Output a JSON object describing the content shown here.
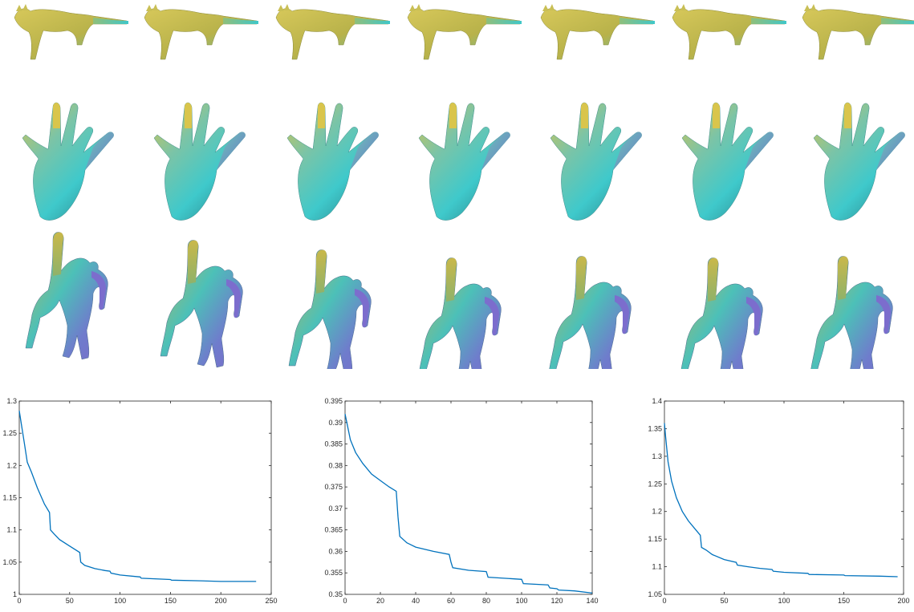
{
  "shapes": {
    "rows": [
      "cat",
      "hand",
      "figure"
    ],
    "columns": 7,
    "colors": {
      "yellow": "#c8b94a",
      "cyan": "#3fc7c9",
      "purple": "#7a6cc9",
      "shade": "#2f7f86"
    }
  },
  "chart_data": [
    {
      "type": "line",
      "xlim": [
        0,
        250
      ],
      "ylim": [
        1,
        1.3
      ],
      "xticks": [
        "0",
        "50",
        "100",
        "150",
        "200",
        "250"
      ],
      "yticks": [
        "1",
        "1.05",
        "1.1",
        "1.15",
        "1.2",
        "1.25",
        "1.3"
      ],
      "color": "#0072bd",
      "grid": false,
      "series": [
        {
          "x": [
            0,
            2,
            5,
            8,
            12,
            18,
            25,
            30,
            31,
            35,
            40,
            50,
            60,
            61,
            65,
            75,
            85,
            90,
            91,
            100,
            120,
            121,
            150,
            151,
            180,
            200,
            220,
            235
          ],
          "y": [
            1.285,
            1.265,
            1.235,
            1.205,
            1.19,
            1.165,
            1.14,
            1.127,
            1.1,
            1.093,
            1.085,
            1.075,
            1.065,
            1.05,
            1.045,
            1.04,
            1.037,
            1.036,
            1.033,
            1.03,
            1.027,
            1.025,
            1.023,
            1.022,
            1.021,
            1.02,
            1.02,
            1.02
          ]
        }
      ]
    },
    {
      "type": "line",
      "xlim": [
        0,
        140
      ],
      "ylim": [
        0.35,
        0.395
      ],
      "xticks": [
        "0",
        "20",
        "40",
        "60",
        "80",
        "100",
        "120",
        "140"
      ],
      "yticks": [
        "0.35",
        "0.355",
        "0.36",
        "0.365",
        "0.37",
        "0.375",
        "0.38",
        "0.385",
        "0.39",
        "0.395"
      ],
      "color": "#0072bd",
      "grid": false,
      "series": [
        {
          "x": [
            0,
            1,
            3,
            6,
            10,
            15,
            20,
            25,
            29,
            30,
            31,
            35,
            40,
            50,
            59,
            60,
            61,
            70,
            80,
            81,
            100,
            101,
            115,
            116,
            120,
            121,
            130,
            140
          ],
          "y": [
            0.392,
            0.39,
            0.386,
            0.383,
            0.3805,
            0.378,
            0.3765,
            0.375,
            0.374,
            0.368,
            0.3635,
            0.362,
            0.361,
            0.36,
            0.3593,
            0.3575,
            0.3562,
            0.3556,
            0.3553,
            0.354,
            0.3535,
            0.3525,
            0.3522,
            0.3515,
            0.3513,
            0.351,
            0.3508,
            0.3503
          ]
        }
      ]
    },
    {
      "type": "line",
      "xlim": [
        0,
        200
      ],
      "ylim": [
        1.05,
        1.4
      ],
      "xticks": [
        "0",
        "50",
        "100",
        "150",
        "200"
      ],
      "yticks": [
        "1.05",
        "1.1",
        "1.15",
        "1.2",
        "1.25",
        "1.3",
        "1.35",
        "1.4"
      ],
      "color": "#0072bd",
      "grid": false,
      "series": [
        {
          "x": [
            0,
            1,
            3,
            6,
            10,
            15,
            20,
            25,
            30,
            31,
            35,
            40,
            50,
            60,
            61,
            70,
            80,
            90,
            91,
            100,
            120,
            121,
            150,
            151,
            180,
            195
          ],
          "y": [
            1.36,
            1.335,
            1.29,
            1.255,
            1.225,
            1.2,
            1.183,
            1.17,
            1.157,
            1.135,
            1.13,
            1.122,
            1.113,
            1.108,
            1.103,
            1.1,
            1.097,
            1.095,
            1.092,
            1.09,
            1.088,
            1.086,
            1.085,
            1.084,
            1.083,
            1.082
          ]
        }
      ]
    }
  ]
}
